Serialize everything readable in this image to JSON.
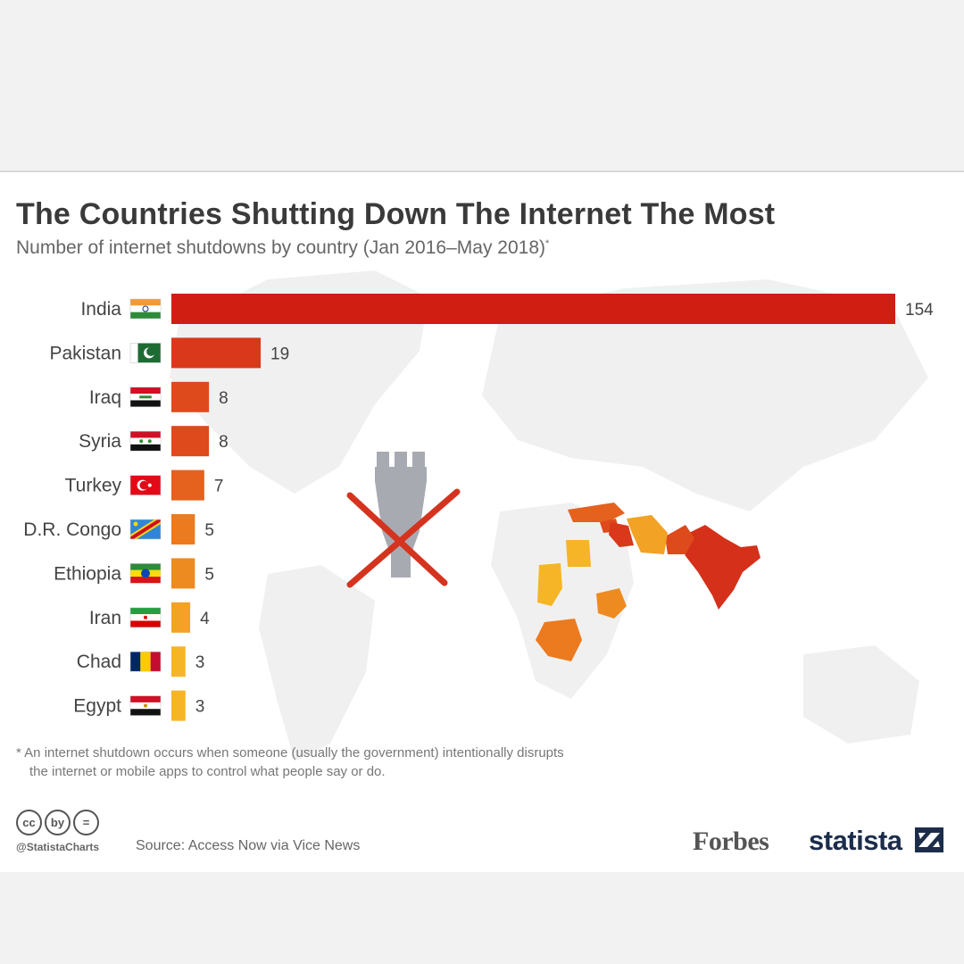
{
  "header": {
    "title": "The Countries Shutting Down The Internet The Most",
    "subtitle": "Number of internet shutdowns by country (Jan 2016–May 2018)",
    "subtitle_marker": "*"
  },
  "chart_data": {
    "type": "bar",
    "orientation": "horizontal",
    "categories": [
      "India",
      "Pakistan",
      "Iraq",
      "Syria",
      "Turkey",
      "D.R. Congo",
      "Ethiopia",
      "Iran",
      "Chad",
      "Egypt"
    ],
    "values": [
      154,
      19,
      8,
      8,
      7,
      5,
      5,
      4,
      3,
      3
    ],
    "colors": [
      "#d01e12",
      "#d9381a",
      "#de4a1c",
      "#de4a1c",
      "#e4621e",
      "#ec7a1e",
      "#ee8b20",
      "#f2a224",
      "#f5b526",
      "#f5b526"
    ],
    "title": "The Countries Shutting Down The Internet The Most",
    "subtitle": "Number of internet shutdowns by country (Jan 2016–May 2018)*",
    "xlim": [
      0,
      154
    ],
    "grid": false,
    "data_labels": true
  },
  "footnote": {
    "line1": "* An internet shutdown occurs when someone (usually the government) intentionally disrupts",
    "line2": "the internet or mobile apps to control what people say or do."
  },
  "footer": {
    "cc_icons": [
      "cc",
      "by",
      "="
    ],
    "handle": "@StatistaCharts",
    "source": "Source: Access Now via Vice News",
    "forbes_logo": "Forbes",
    "statista_logo": "statista"
  },
  "colors": {
    "background": "#f2f2f2",
    "card": "#ffffff",
    "title": "#3a3a3a",
    "map_land": "#efefef",
    "icon_gray": "#a8aab2",
    "cross_red": "#d4341f"
  },
  "icons": [
    "india-flag-icon",
    "pakistan-flag-icon",
    "iraq-flag-icon",
    "syria-flag-icon",
    "turkey-flag-icon",
    "drcongo-flag-icon",
    "ethiopia-flag-icon",
    "iran-flag-icon",
    "chad-flag-icon",
    "egypt-flag-icon",
    "blocked-tower-icon"
  ]
}
